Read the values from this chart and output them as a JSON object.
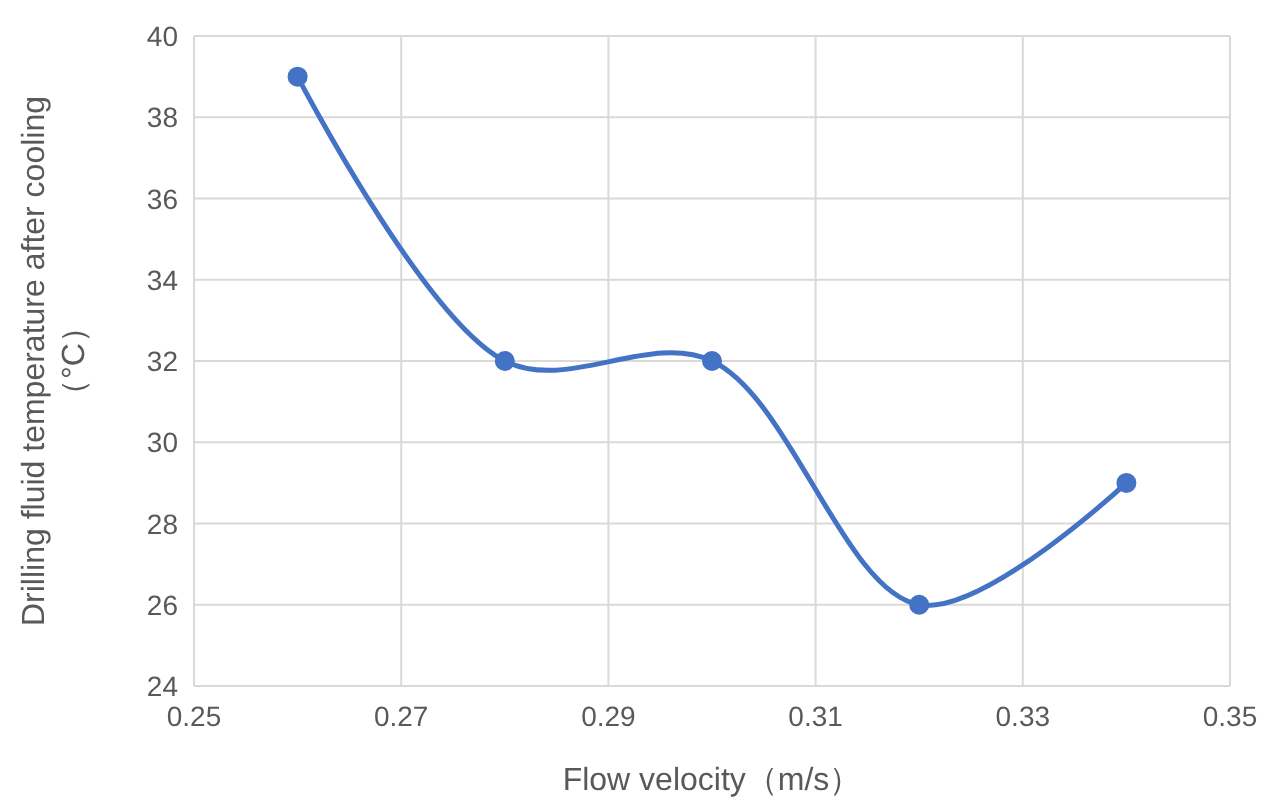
{
  "chart_data": {
    "type": "line",
    "xlabel": "Flow velocity（m/s）",
    "ylabel": "Drilling fluid temperature after cooling（°C）",
    "x": [
      0.26,
      0.28,
      0.3,
      0.32,
      0.34
    ],
    "series": [
      {
        "color": "#4472c4",
        "values": [
          39,
          32,
          32,
          26,
          29
        ]
      }
    ],
    "xlim": [
      0.25,
      0.35
    ],
    "xticks": [
      0.25,
      0.27,
      0.29,
      0.31,
      0.33,
      0.35
    ],
    "ylim": [
      24,
      40
    ],
    "yticks": [
      24,
      26,
      28,
      30,
      32,
      34,
      36,
      38,
      40
    ],
    "grid": true,
    "marker": "circle",
    "line_style": "solid"
  }
}
